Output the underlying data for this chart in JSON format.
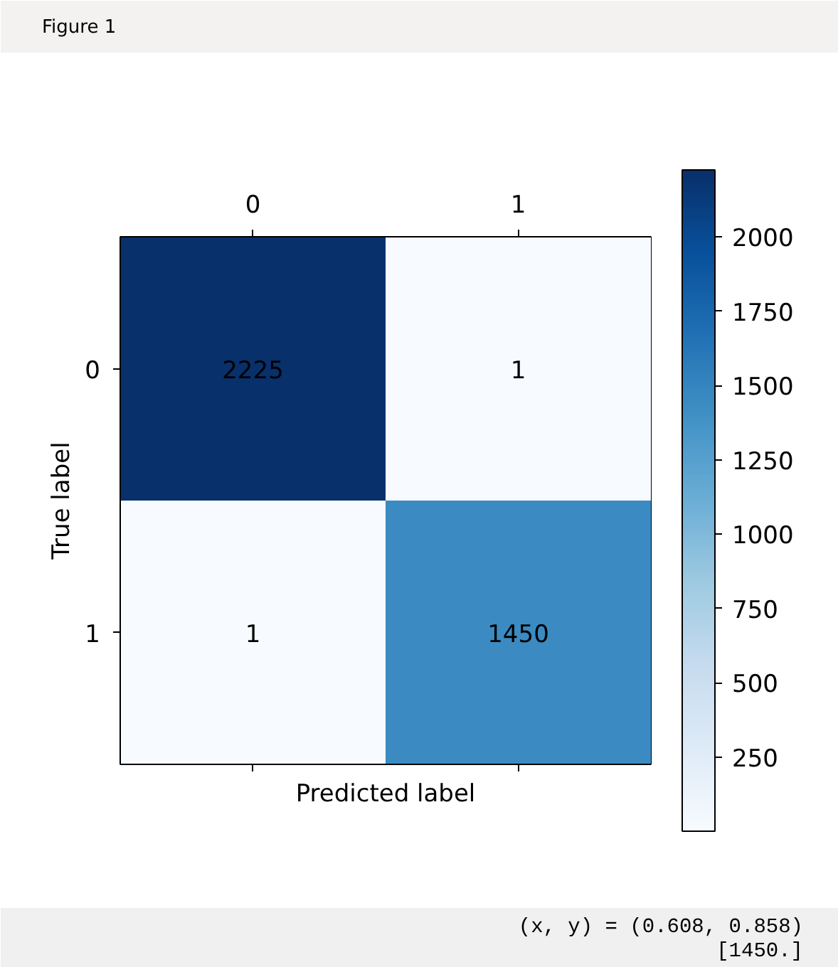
{
  "chart_data": {
    "type": "heatmap",
    "xlabel": "Predicted label",
    "ylabel": "True label",
    "categories": [
      "0",
      "1"
    ],
    "y_categories": [
      "0",
      "1"
    ],
    "cells": [
      [
        2225,
        1
      ],
      [
        1,
        1450
      ]
    ],
    "clim": [
      1,
      2225
    ],
    "cticks": [
      250,
      500,
      750,
      1000,
      1250,
      1500,
      1750,
      2000
    ],
    "data_labels": true,
    "annotations": [
      "Figure 1",
      "(x, y) = (0.608, 0.858)",
      "[1450.]"
    ]
  }
}
